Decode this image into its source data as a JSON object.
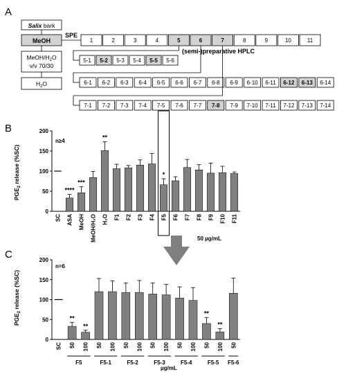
{
  "panels": {
    "a": "A",
    "b": "B",
    "c": "C"
  },
  "panel_a": {
    "extraction": [
      {
        "text": "Salix",
        "suffix": " bark"
      },
      {
        "text": "MeOH"
      },
      {
        "line1": "MeOH/H",
        "sub": "2",
        "line1_end": "O",
        "line2": "v/v 70/30"
      },
      {
        "text": "H",
        "sub": "2",
        "end": "O"
      }
    ],
    "spe_label": "SPE",
    "hplc_label": "(semi-)preparative HPLC",
    "fractions": [
      {
        "label": "1",
        "highlight": false
      },
      {
        "label": "2",
        "highlight": false
      },
      {
        "label": "3",
        "highlight": false
      },
      {
        "label": "4",
        "highlight": false
      },
      {
        "label": "5",
        "highlight": true
      },
      {
        "label": "6",
        "highlight": true
      },
      {
        "label": "7",
        "highlight": true
      },
      {
        "label": "8",
        "highlight": false
      },
      {
        "label": "9",
        "highlight": false
      },
      {
        "label": "10",
        "highlight": false
      },
      {
        "label": "11",
        "highlight": false
      }
    ],
    "subfractions_5": [
      {
        "label": "5-1",
        "highlight": false
      },
      {
        "label": "5-2",
        "highlight": true
      },
      {
        "label": "5-3",
        "highlight": false
      },
      {
        "label": "5-4",
        "highlight": false
      },
      {
        "label": "5-5",
        "highlight": true
      },
      {
        "label": "5-6",
        "highlight": false
      }
    ],
    "subfractions_6": [
      {
        "label": "6-1",
        "highlight": false
      },
      {
        "label": "6-2",
        "highlight": false
      },
      {
        "label": "6-3",
        "highlight": false
      },
      {
        "label": "6-4",
        "highlight": false
      },
      {
        "label": "6-5",
        "highlight": false
      },
      {
        "label": "6-6",
        "highlight": false
      },
      {
        "label": "6-7",
        "highlight": false
      },
      {
        "label": "6-8",
        "highlight": false
      },
      {
        "label": "6-9",
        "highlight": false
      },
      {
        "label": "6-10",
        "highlight": false
      },
      {
        "label": "6-11",
        "highlight": false
      },
      {
        "label": "6-12",
        "highlight": true
      },
      {
        "label": "6-13",
        "highlight": true
      },
      {
        "label": "6-14",
        "highlight": false
      }
    ],
    "subfractions_7": [
      {
        "label": "7-1",
        "highlight": false
      },
      {
        "label": "7-2",
        "highlight": false
      },
      {
        "label": "7-3",
        "highlight": false
      },
      {
        "label": "7-4",
        "highlight": false
      },
      {
        "label": "7-5",
        "highlight": false
      },
      {
        "label": "7-6",
        "highlight": false
      },
      {
        "label": "7-7",
        "highlight": false
      },
      {
        "label": "7-8",
        "highlight": true
      },
      {
        "label": "7-9",
        "highlight": false
      },
      {
        "label": "7-10",
        "highlight": false
      },
      {
        "label": "7-11",
        "highlight": false
      },
      {
        "label": "7-12",
        "highlight": false
      },
      {
        "label": "7-13",
        "highlight": false
      },
      {
        "label": "7-14",
        "highlight": false
      }
    ]
  },
  "colors": {
    "bar": "#808080",
    "highlight": "#d2d2d2",
    "arrow": "#7f7f7f",
    "line": "#000000"
  },
  "chart_data": [
    {
      "type": "bar",
      "panel": "B",
      "ylabel_main": "PGE",
      "ylabel_sub": "2",
      "ylabel_end": " release (%SC)",
      "annotation": "n≥4",
      "footnote": "50 µg/mL",
      "ylim": [
        0,
        200
      ],
      "yticks": [
        0,
        50,
        100,
        150,
        200
      ],
      "categories": [
        "SC",
        "ASA",
        "MeOH",
        "MeOH/H₂O",
        "H₂O",
        "F1",
        "F2",
        "F3",
        "F4",
        "F5",
        "F6",
        "F7",
        "F8",
        "F9",
        "F10",
        "F11"
      ],
      "values": [
        100,
        33,
        46,
        84,
        151,
        106,
        108,
        115,
        118,
        66,
        76,
        109,
        103,
        95,
        96,
        94
      ],
      "errors": [
        0,
        9,
        15,
        15,
        22,
        11,
        6,
        13,
        26,
        15,
        10,
        20,
        13,
        25,
        16,
        4
      ],
      "significance": [
        "",
        "****",
        "***",
        "",
        "**",
        "",
        "",
        "",
        "",
        "*",
        "",
        "",
        "",
        "",
        "",
        ""
      ],
      "boxed_category": "F5"
    },
    {
      "type": "bar",
      "panel": "C",
      "ylabel_main": "PGE",
      "ylabel_sub": "2",
      "ylabel_end": " release (%SC)",
      "annotation": "n=6",
      "xlabel": "µg/mL",
      "ylim": [
        0,
        200
      ],
      "yticks": [
        0,
        50,
        100,
        150,
        200
      ],
      "categories": [
        "SC",
        "50",
        "100",
        "50",
        "100",
        "50",
        "100",
        "50",
        "100",
        "50",
        "100",
        "50",
        "100",
        "50"
      ],
      "values": [
        100,
        33,
        18,
        120,
        120,
        118,
        118,
        114,
        112,
        104,
        98,
        40,
        19,
        116
      ],
      "errors": [
        0,
        10,
        5,
        33,
        27,
        24,
        30,
        28,
        26,
        28,
        32,
        15,
        8,
        38
      ],
      "significance": [
        "",
        "**",
        "**",
        "",
        "",
        "",
        "",
        "",
        "",
        "",
        "",
        "**",
        "**",
        ""
      ],
      "groups": [
        {
          "label": "F5",
          "from": 1,
          "to": 2
        },
        {
          "label": "F5-1",
          "from": 3,
          "to": 4
        },
        {
          "label": "F5-2",
          "from": 5,
          "to": 6
        },
        {
          "label": "F5-3",
          "from": 7,
          "to": 8
        },
        {
          "label": "F5-4",
          "from": 9,
          "to": 10
        },
        {
          "label": "F5-5",
          "from": 11,
          "to": 12
        },
        {
          "label": "F5-6",
          "from": 13,
          "to": 13
        }
      ]
    }
  ]
}
